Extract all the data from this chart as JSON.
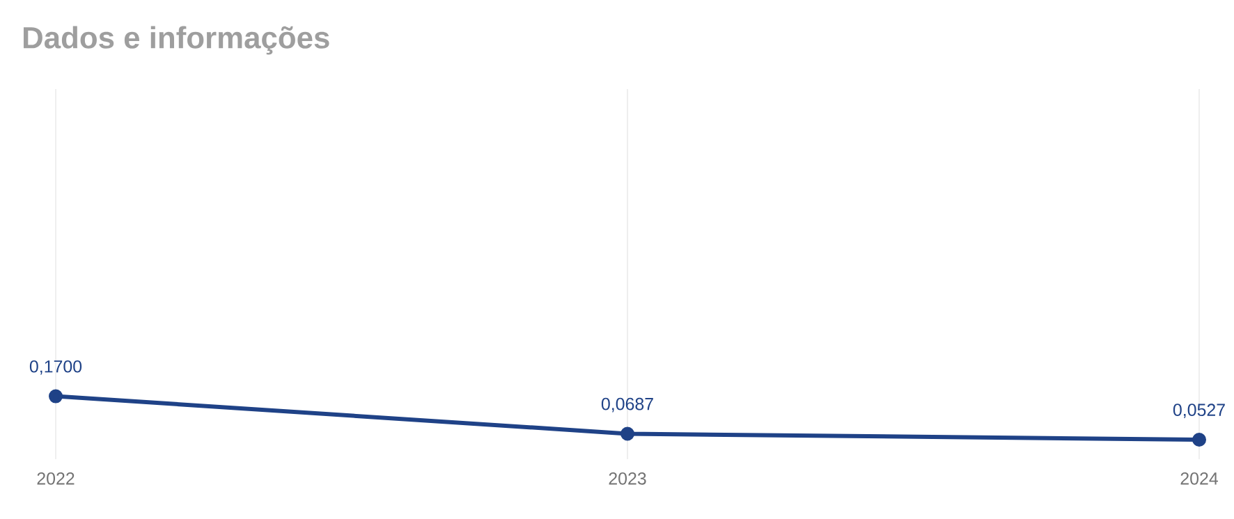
{
  "chart_data": {
    "type": "line",
    "title": "Dados e informações",
    "categories": [
      "2022",
      "2023",
      "2024"
    ],
    "series": [
      {
        "color": "#1f4287",
        "values": [
          0.17,
          0.0687,
          0.0527
        ],
        "value_labels": [
          "0,1700",
          "0,0687",
          "0,0527"
        ]
      }
    ],
    "ylim": [
      0,
      1
    ],
    "grid": "x",
    "marker": "circle",
    "tick_labels": "x"
  }
}
